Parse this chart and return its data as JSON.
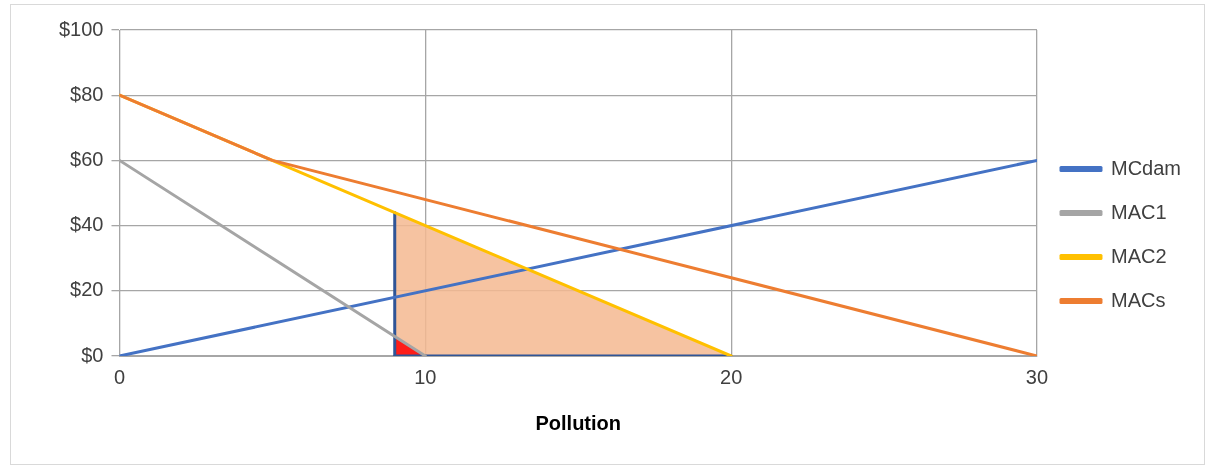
{
  "chart_data": {
    "type": "line",
    "xlabel": "Pollution",
    "xlim": [
      0,
      30
    ],
    "xticks": [
      0,
      10,
      20,
      30
    ],
    "ylim": [
      0,
      100
    ],
    "yticks": [
      {
        "value": 0,
        "label": "$0"
      },
      {
        "value": 20,
        "label": "$20"
      },
      {
        "value": 40,
        "label": "$40"
      },
      {
        "value": 60,
        "label": "$60"
      },
      {
        "value": 80,
        "label": "$80"
      },
      {
        "value": 100,
        "label": "$100"
      }
    ],
    "grid": true,
    "legend": "right",
    "marker": "none",
    "series": [
      {
        "type": "area",
        "color": "#f4b990",
        "x": [
          9,
          20
        ],
        "values": [
          44,
          0
        ]
      },
      {
        "type": "area",
        "color": "#ff0000",
        "x": [
          9,
          10
        ],
        "values": [
          6,
          0
        ]
      },
      {
        "type": "line",
        "color": "#2f5597",
        "x": [
          9,
          9
        ],
        "values": [
          0,
          44
        ]
      },
      {
        "type": "line",
        "color": "#2f5597",
        "x": [
          9,
          20
        ],
        "values": [
          0,
          0
        ]
      },
      {
        "name": "MCdam",
        "color": "#4472c4",
        "x": [
          0,
          30
        ],
        "values": [
          0,
          60
        ]
      },
      {
        "name": "MAC1",
        "color": "#a5a5a5",
        "x": [
          0,
          10
        ],
        "values": [
          60,
          0
        ]
      },
      {
        "name": "MAC2",
        "color": "#ffc000",
        "x": [
          0,
          20
        ],
        "values": [
          80,
          0
        ]
      },
      {
        "name": "MACs",
        "color": "#ed7d31",
        "x": [
          0,
          5,
          30
        ],
        "values": [
          80,
          60,
          0
        ]
      }
    ]
  }
}
